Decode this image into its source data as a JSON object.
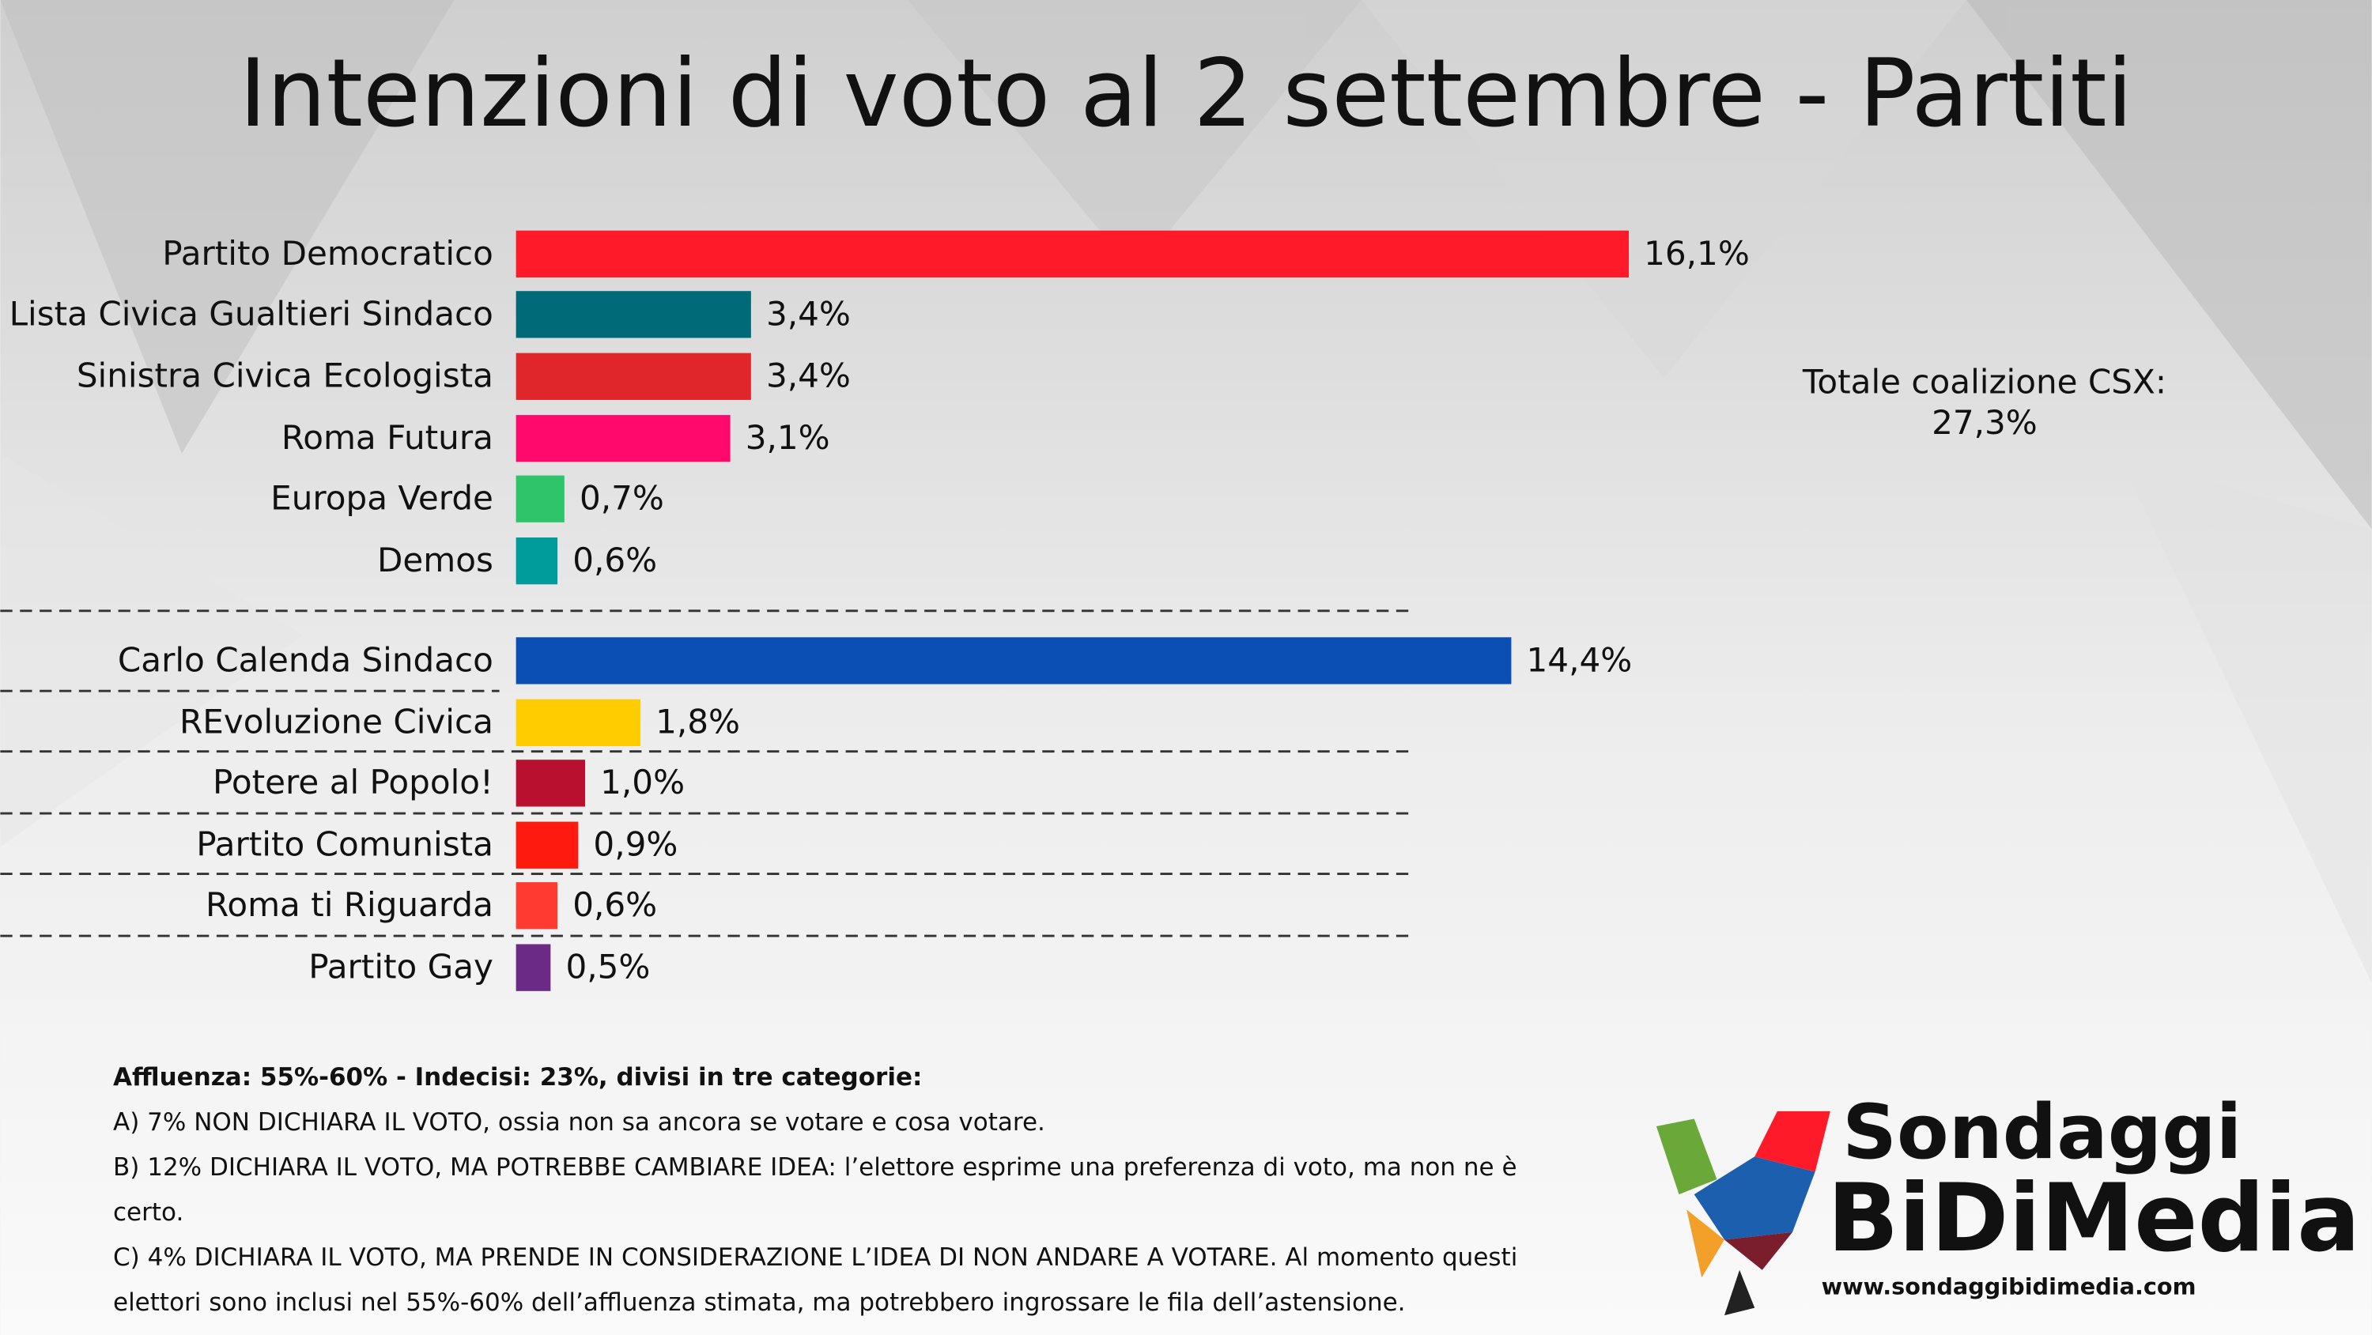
{
  "chart_data": {
    "type": "bar",
    "orientation": "horizontal",
    "title": "Intenzioni di voto al 2 settembre - Partiti",
    "categories": [
      "Partito Democratico",
      "Lista Civica Gualtieri Sindaco",
      "Sinistra Civica Ecologista",
      "Roma Futura",
      "Europa Verde",
      "Demos",
      "Carlo Calenda Sindaco",
      "REvoluzione Civica",
      "Potere al Popolo!",
      "Partito Comunista",
      "Roma ti Riguarda",
      "Partito Gay"
    ],
    "values": [
      16.1,
      3.4,
      3.4,
      3.1,
      0.7,
      0.6,
      14.4,
      1.8,
      1.0,
      0.9,
      0.6,
      0.5
    ],
    "value_labels": [
      "16,1%",
      "3,4%",
      "3,4%",
      "3,1%",
      "0,7%",
      "0,6%",
      "14,4%",
      "1,8%",
      "1,0%",
      "0,9%",
      "0,6%",
      "0,5%"
    ],
    "colors": [
      "#ff1a2a",
      "#006a78",
      "#e0262a",
      "#ff0a6c",
      "#2ec46a",
      "#009b9b",
      "#0b4fb5",
      "#ffcc00",
      "#b8102e",
      "#ff1a10",
      "#ff3a30",
      "#6a2a86"
    ],
    "annotation": {
      "label": "Totale coalizione CSX:",
      "value_label": "27,3%"
    }
  },
  "notes": [
    "Affluenza: 55%-60% - Indecisi: 23%, divisi in tre categorie:",
    "A) 7% NON DICHIARA IL VOTO, ossia non sa ancora se votare e cosa votare.",
    "B) 12% DICHIARA IL VOTO, MA POTREBBE CAMBIARE IDEA: l’elettore esprime una preferenza di voto, ma non ne è certo.",
    "C) 4% DICHIARA IL VOTO, MA PRENDE IN CONSIDERAZIONE L’IDEA DI NON ANDARE A VOTARE. Al momento questi elettori sono inclusi nel 55%-60% dell’affluenza stimata, ma potrebbero ingrossare le fila dell’astensione."
  ],
  "logo": {
    "line1": "Sondaggi",
    "line2": "BiDiMedia",
    "url": "www.sondaggibidimedia.com"
  }
}
